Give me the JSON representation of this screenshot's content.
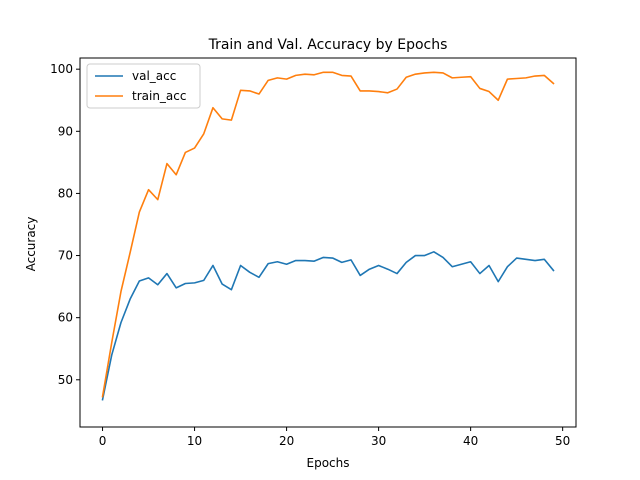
{
  "chart_data": {
    "type": "line",
    "title": "Train and Val. Accuracy by Epochs",
    "xlabel": "Epochs",
    "ylabel": "Accuracy",
    "xlim": [
      -2.45,
      51.45
    ],
    "ylim": [
      42.4,
      101.8
    ],
    "xticks": [
      0,
      10,
      20,
      30,
      40,
      50
    ],
    "yticks": [
      50,
      60,
      70,
      80,
      90,
      100
    ],
    "grid": false,
    "legend_position": "upper left",
    "x": [
      0,
      1,
      2,
      3,
      4,
      5,
      6,
      7,
      8,
      9,
      10,
      11,
      12,
      13,
      14,
      15,
      16,
      17,
      18,
      19,
      20,
      21,
      22,
      23,
      24,
      25,
      26,
      27,
      28,
      29,
      30,
      31,
      32,
      33,
      34,
      35,
      36,
      37,
      38,
      39,
      40,
      41,
      42,
      43,
      44,
      45,
      46,
      47,
      48,
      49
    ],
    "series": [
      {
        "name": "val_acc",
        "color": "#1f77b4",
        "values": [
          46.8,
          54.0,
          59.2,
          63.0,
          65.9,
          66.4,
          65.3,
          67.1,
          64.8,
          65.5,
          65.6,
          66.0,
          68.4,
          65.4,
          64.5,
          68.4,
          67.3,
          66.5,
          68.7,
          69.0,
          68.6,
          69.2,
          69.2,
          69.1,
          69.7,
          69.6,
          68.9,
          69.3,
          66.8,
          67.8,
          68.4,
          67.8,
          67.1,
          68.9,
          70.0,
          70.0,
          70.6,
          69.7,
          68.2,
          68.6,
          69.0,
          67.1,
          68.4,
          65.8,
          68.2,
          69.6,
          69.4,
          69.2,
          69.4,
          67.6
        ]
      },
      {
        "name": "train_acc",
        "color": "#ff7f0e",
        "values": [
          47.3,
          56.0,
          64.2,
          70.5,
          77.0,
          80.6,
          79.0,
          84.8,
          83.0,
          86.6,
          87.3,
          89.6,
          93.8,
          92.0,
          91.8,
          96.6,
          96.5,
          96.0,
          98.2,
          98.6,
          98.4,
          99.0,
          99.2,
          99.1,
          99.5,
          99.5,
          99.0,
          98.9,
          96.5,
          96.5,
          96.4,
          96.2,
          96.8,
          98.7,
          99.2,
          99.4,
          99.5,
          99.4,
          98.6,
          98.7,
          98.8,
          96.9,
          96.4,
          95.0,
          98.4,
          98.5,
          98.6,
          98.9,
          99.0,
          97.7
        ]
      }
    ]
  }
}
